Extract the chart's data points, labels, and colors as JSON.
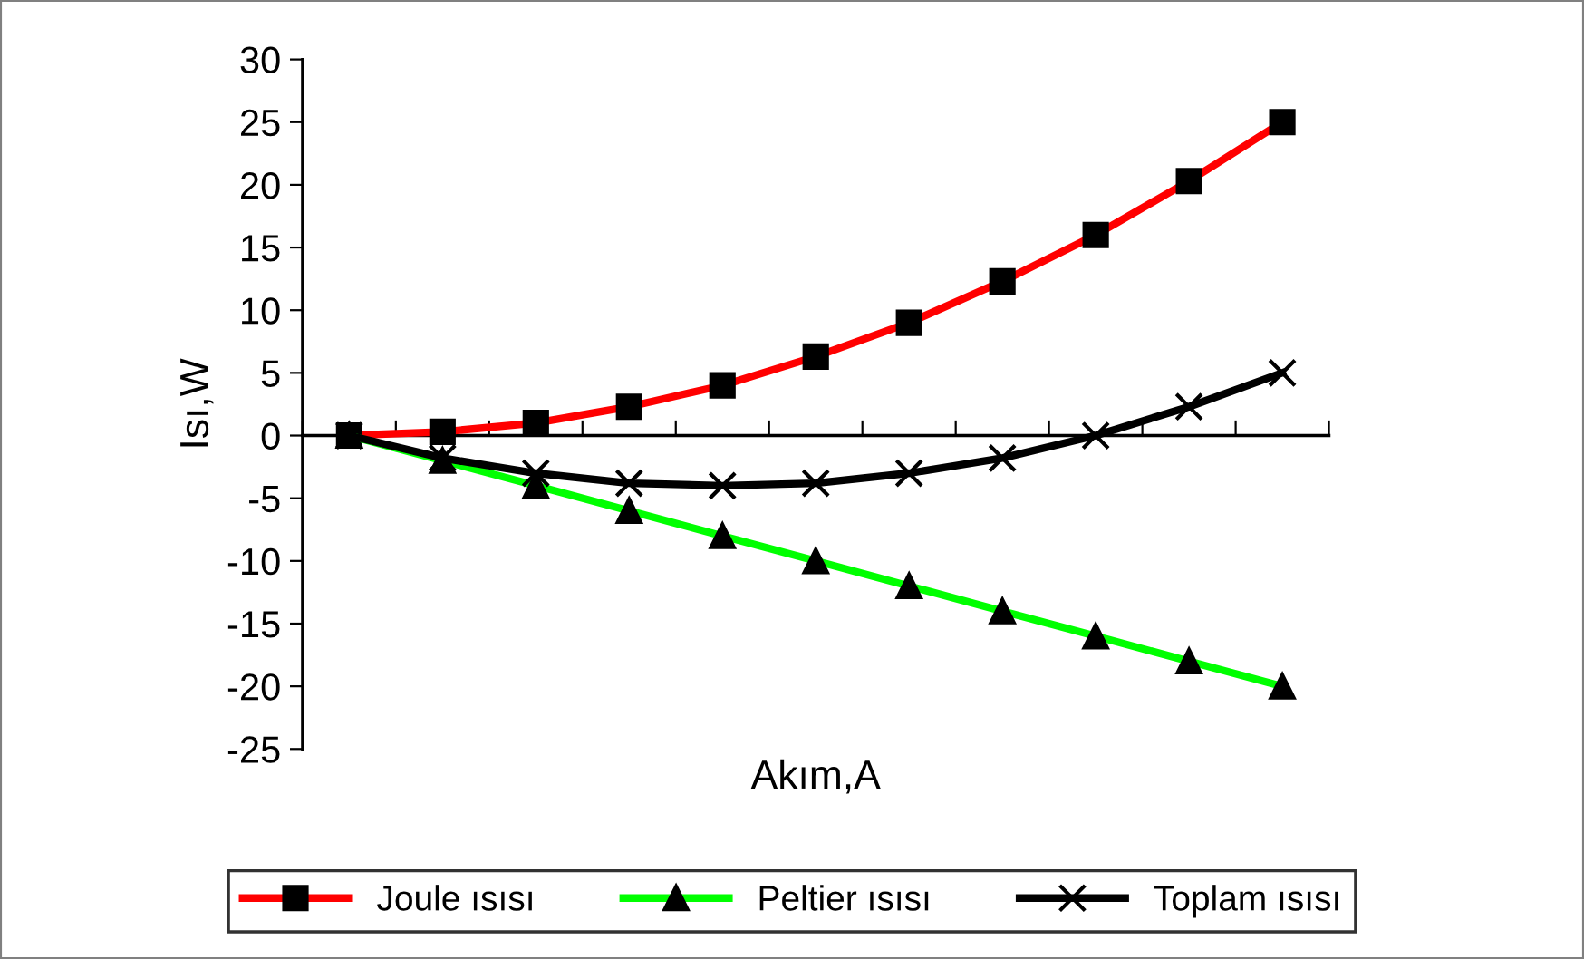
{
  "chart_data": {
    "type": "line",
    "xlabel": "Akım,A",
    "ylabel": "Isı,W",
    "categories": [
      null,
      null,
      null,
      null,
      null,
      null,
      null,
      null,
      null,
      null,
      null
    ],
    "series": [
      {
        "name": "Joule ısısı",
        "color": "#ff0000",
        "marker": "square",
        "values": [
          0,
          0.3,
          1,
          2.3,
          4,
          6.3,
          9,
          12.3,
          16,
          20.3,
          25
        ]
      },
      {
        "name": "Peltier ısısı",
        "color": "#00ff00",
        "marker": "triangle",
        "values": [
          0,
          -2,
          -4,
          -6,
          -8,
          -10,
          -12,
          -14,
          -16,
          -18,
          -20
        ]
      },
      {
        "name": "Toplam ısısı",
        "color": "#000000",
        "marker": "cross",
        "values": [
          0,
          -1.8,
          -3,
          -3.8,
          -4,
          -3.8,
          -3,
          -1.8,
          0,
          2.3,
          5
        ]
      }
    ],
    "ylim": [
      -25,
      30
    ],
    "yticks": [
      -25,
      -20,
      -15,
      -10,
      -5,
      0,
      5,
      10,
      15,
      20,
      25,
      30
    ],
    "tick_labels": "y",
    "legend": "bottom",
    "line_style": "solid"
  }
}
